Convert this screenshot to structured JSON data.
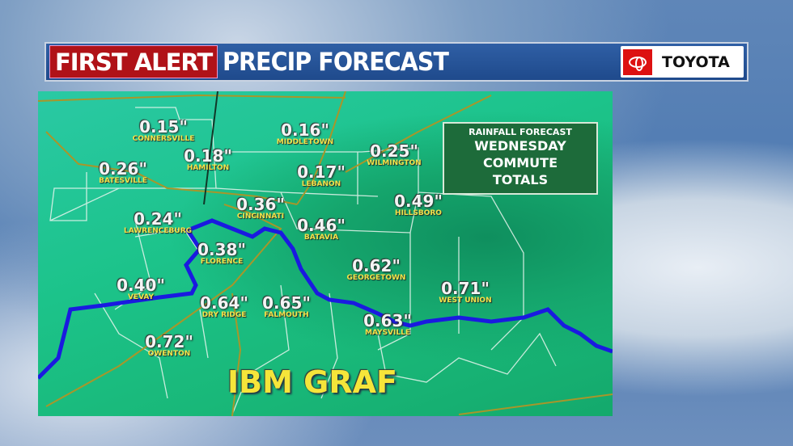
{
  "header": {
    "alert": "FIRST ALERT",
    "title": "PRECIP FORECAST",
    "sponsor": "TOYOTA"
  },
  "legend_box": {
    "subtitle": "RAINFALL FORECAST",
    "lines": [
      "WEDNESDAY",
      "COMMUTE",
      "TOTALS"
    ]
  },
  "watermark": "IBM GRAF",
  "colors": {
    "alert_red": "#b01218",
    "header_blue": "#1f4a8c",
    "river": "#1a1ae0",
    "value_label": "#f4f4f4",
    "city_label": "#f2e24a"
  },
  "locations": [
    {
      "city": "CONNERSVILLE",
      "value": "0.15\""
    },
    {
      "city": "MIDDLETOWN",
      "value": "0.16\""
    },
    {
      "city": "HAMILTON",
      "value": "0.18\""
    },
    {
      "city": "LEBANON",
      "value": "0.17\""
    },
    {
      "city": "WILMINGTON",
      "value": "0.25\""
    },
    {
      "city": "BATESVILLE",
      "value": "0.26\""
    },
    {
      "city": "CINCINNATI",
      "value": "0.36\""
    },
    {
      "city": "HILLSBORO",
      "value": "0.49\""
    },
    {
      "city": "LAWRENCEBURG",
      "value": "0.24\""
    },
    {
      "city": "BATAVIA",
      "value": "0.46\""
    },
    {
      "city": "FLORENCE",
      "value": "0.38\""
    },
    {
      "city": "GEORGETOWN",
      "value": "0.62\""
    },
    {
      "city": "VEVAY",
      "value": "0.40\""
    },
    {
      "city": "WEST UNION",
      "value": "0.71\""
    },
    {
      "city": "DRY RIDGE",
      "value": "0.64\""
    },
    {
      "city": "FALMOUTH",
      "value": "0.65\""
    },
    {
      "city": "MAYSVILLE",
      "value": "0.63\""
    },
    {
      "city": "OWENTON",
      "value": "0.72\""
    }
  ]
}
